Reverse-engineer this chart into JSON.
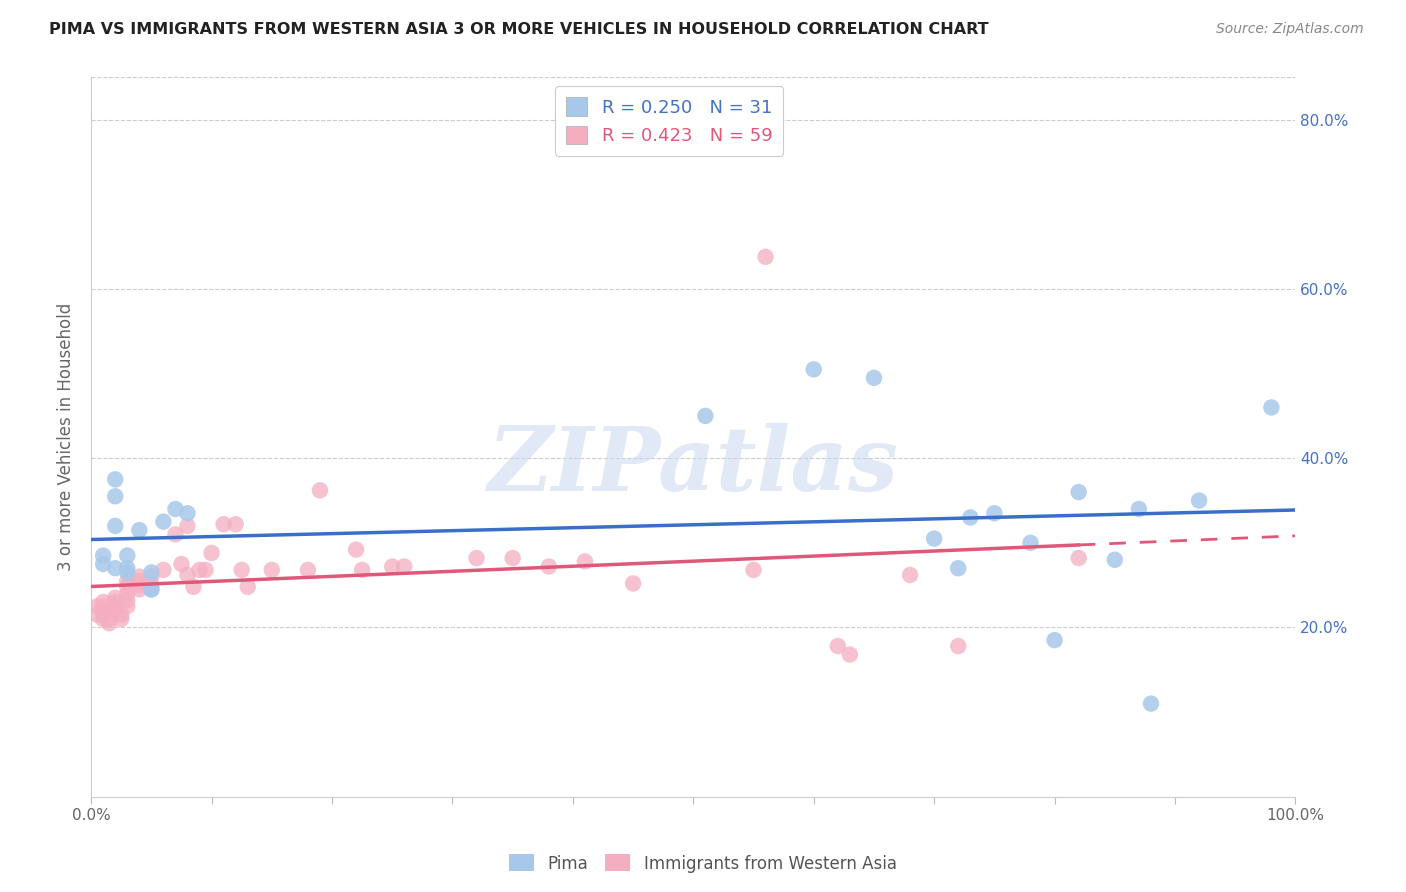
{
  "title": "PIMA VS IMMIGRANTS FROM WESTERN ASIA 3 OR MORE VEHICLES IN HOUSEHOLD CORRELATION CHART",
  "source": "Source: ZipAtlas.com",
  "ylabel": "3 or more Vehicles in Household",
  "xlim": [
    0.0,
    1.0
  ],
  "ylim": [
    0.0,
    0.85
  ],
  "ytick_positions": [
    0.0,
    0.2,
    0.4,
    0.6,
    0.8
  ],
  "ytick_labels": [
    "",
    "20.0%",
    "40.0%",
    "60.0%",
    "80.0%"
  ],
  "xtick_positions": [
    0.0,
    0.1,
    0.2,
    0.3,
    0.4,
    0.5,
    0.6,
    0.7,
    0.8,
    0.9,
    1.0
  ],
  "xtick_labels": [
    "0.0%",
    "",
    "",
    "",
    "",
    "",
    "",
    "",
    "",
    "",
    "100.0%"
  ],
  "pima_R": 0.25,
  "pima_N": 31,
  "immigrants_R": 0.423,
  "immigrants_N": 59,
  "pima_color": "#a8c8ea",
  "immigrants_color": "#f4aec0",
  "pima_line_color": "#3a6fc9",
  "immigrants_line_color": "#e05878",
  "pima_text_color": "#4472c4",
  "immigrants_text_color": "#e05878",
  "legend_label_pima": "Pima",
  "legend_label_immigrants": "Immigrants from Western Asia",
  "watermark": "ZIPatlas",
  "pima_x": [
    0.01,
    0.01,
    0.02,
    0.02,
    0.02,
    0.02,
    0.03,
    0.03,
    0.03,
    0.04,
    0.05,
    0.05,
    0.05,
    0.06,
    0.07,
    0.08,
    0.51,
    0.6,
    0.65,
    0.7,
    0.72,
    0.73,
    0.75,
    0.78,
    0.8,
    0.82,
    0.85,
    0.87,
    0.88,
    0.92,
    0.98
  ],
  "pima_y": [
    0.285,
    0.275,
    0.375,
    0.355,
    0.32,
    0.27,
    0.285,
    0.27,
    0.265,
    0.315,
    0.265,
    0.245,
    0.245,
    0.325,
    0.34,
    0.335,
    0.45,
    0.505,
    0.495,
    0.305,
    0.27,
    0.33,
    0.335,
    0.3,
    0.185,
    0.36,
    0.28,
    0.34,
    0.11,
    0.35,
    0.46
  ],
  "immigrants_x": [
    0.005,
    0.005,
    0.01,
    0.01,
    0.01,
    0.01,
    0.01,
    0.015,
    0.015,
    0.02,
    0.02,
    0.02,
    0.02,
    0.02,
    0.025,
    0.025,
    0.03,
    0.03,
    0.03,
    0.03,
    0.03,
    0.04,
    0.04,
    0.04,
    0.04,
    0.05,
    0.05,
    0.06,
    0.07,
    0.075,
    0.08,
    0.08,
    0.085,
    0.09,
    0.095,
    0.1,
    0.11,
    0.12,
    0.125,
    0.13,
    0.15,
    0.18,
    0.19,
    0.22,
    0.225,
    0.25,
    0.26,
    0.32,
    0.35,
    0.38,
    0.41,
    0.45,
    0.55,
    0.56,
    0.62,
    0.63,
    0.68,
    0.72,
    0.82
  ],
  "immigrants_y": [
    0.225,
    0.215,
    0.23,
    0.225,
    0.22,
    0.215,
    0.21,
    0.21,
    0.205,
    0.235,
    0.23,
    0.225,
    0.22,
    0.225,
    0.215,
    0.21,
    0.255,
    0.248,
    0.24,
    0.232,
    0.225,
    0.26,
    0.255,
    0.25,
    0.245,
    0.26,
    0.25,
    0.268,
    0.31,
    0.275,
    0.32,
    0.262,
    0.248,
    0.268,
    0.268,
    0.288,
    0.322,
    0.322,
    0.268,
    0.248,
    0.268,
    0.268,
    0.362,
    0.292,
    0.268,
    0.272,
    0.272,
    0.282,
    0.282,
    0.272,
    0.278,
    0.252,
    0.268,
    0.638,
    0.178,
    0.168,
    0.262,
    0.178,
    0.282
  ]
}
